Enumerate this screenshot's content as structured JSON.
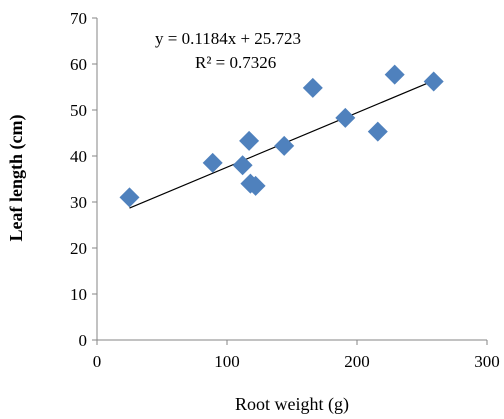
{
  "chart_data": {
    "type": "scatter",
    "xlabel": "Root weight (g)",
    "ylabel": "Leaf  length (cm)",
    "xlim": [
      0,
      300
    ],
    "ylim": [
      0,
      70
    ],
    "xticks": [
      0,
      100,
      200,
      300
    ],
    "yticks": [
      0,
      10,
      20,
      30,
      40,
      50,
      60,
      70
    ],
    "grid": false,
    "marker": "diamond",
    "marker_color": "#4F81BD",
    "trendline": {
      "slope": 0.1184,
      "intercept": 25.723,
      "x_range": [
        25,
        260
      ],
      "color": "#000000"
    },
    "equation_text": "y = 0.1184x + 25.723",
    "r2_text": "R² = 0.7326",
    "points": [
      {
        "x": 25,
        "y": 31
      },
      {
        "x": 89,
        "y": 38.5
      },
      {
        "x": 112,
        "y": 38
      },
      {
        "x": 117,
        "y": 43.3
      },
      {
        "x": 118,
        "y": 34
      },
      {
        "x": 122,
        "y": 33.5
      },
      {
        "x": 144,
        "y": 42.2
      },
      {
        "x": 166,
        "y": 54.8
      },
      {
        "x": 191,
        "y": 48.3
      },
      {
        "x": 216,
        "y": 45.3
      },
      {
        "x": 229,
        "y": 57.7
      },
      {
        "x": 259,
        "y": 56.2
      }
    ]
  }
}
